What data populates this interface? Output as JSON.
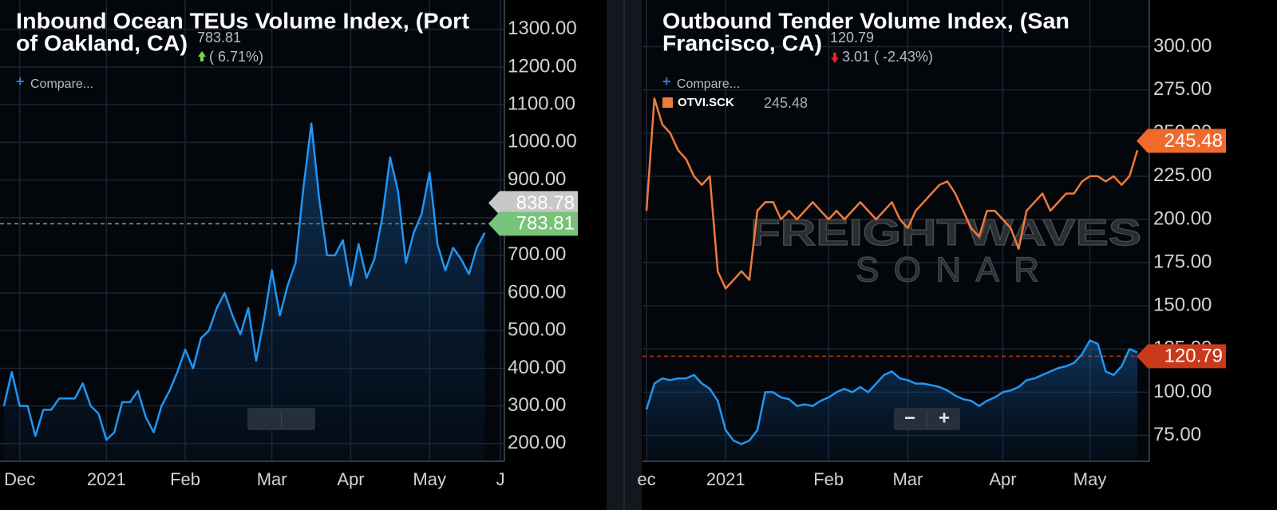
{
  "chart_data": [
    {
      "type": "line",
      "title_lines": [
        "Inbound Ocean TEUs Volume Index, (Port",
        "of Oakland, CA)"
      ],
      "change": "( 6.71%)",
      "compare": "Compare...",
      "categories": [
        null,
        null,
        "Dec",
        null,
        null,
        null,
        null,
        null,
        null,
        null,
        null,
        null,
        null,
        "2021",
        null,
        null,
        null,
        null,
        null,
        null,
        null,
        null,
        null,
        "Feb",
        null,
        null,
        null,
        null,
        null,
        null,
        null,
        null,
        null,
        null,
        "Mar",
        null,
        null,
        null,
        null,
        null,
        null,
        null,
        null,
        null,
        "Apr",
        null,
        null,
        null,
        null,
        null,
        null,
        null,
        null,
        null,
        "May",
        null,
        null,
        null,
        null,
        null,
        null,
        null,
        null,
        "J"
      ],
      "series": [
        {
          "color": "#2196f3",
          "values": [
            300,
            390,
            300,
            300,
            220,
            290,
            290,
            320,
            320,
            320,
            360,
            300,
            280,
            210,
            230,
            310,
            310,
            340,
            270,
            230,
            300,
            340,
            390,
            450,
            400,
            480,
            500,
            560,
            600,
            540,
            490,
            560,
            420,
            530,
            660,
            540,
            620,
            680,
            880,
            1050,
            850,
            700,
            700,
            740,
            620,
            730,
            640,
            690,
            800,
            960,
            870,
            680,
            760,
            810,
            920,
            730,
            660,
            720,
            690,
            650,
            720,
            760,
            null,
            null
          ]
        }
      ],
      "ylim": [
        153,
        1378
      ],
      "yticks": [
        {
          "value": 200,
          "label": "200.00"
        },
        {
          "value": 300,
          "label": "300.00"
        },
        {
          "value": 400,
          "label": "400.00"
        },
        {
          "value": 500,
          "label": "500.00"
        },
        {
          "value": 600,
          "label": "600.00"
        },
        {
          "value": 700,
          "label": "700.00"
        },
        {
          "value": 800,
          "label": "800.00"
        },
        {
          "value": 900,
          "label": "900.00"
        },
        {
          "value": 1000,
          "label": "1000.00"
        },
        {
          "value": 1100,
          "label": "1100.00"
        },
        {
          "value": 1200,
          "label": "1200.00"
        },
        {
          "value": 1300,
          "label": "1300.00"
        }
      ],
      "grid": true,
      "price_labels": [
        {
          "value": 838.78,
          "color": "#c8c8c8"
        },
        {
          "value": 783.81,
          "color": "#78c37a"
        }
      ],
      "ref_color": "#a59a55"
    },
    {
      "type": "line",
      "title_lines": [
        "Outbound Tender Volume Index, (San",
        "Francisco, CA)"
      ],
      "change": "3.01 ( -2.43%)",
      "compare": "Compare...",
      "watermark": [
        "FREIGHTWAVES",
        "SONAR"
      ],
      "zoom": [
        "−",
        "+"
      ],
      "categories": [
        "ec",
        null,
        null,
        null,
        null,
        null,
        null,
        null,
        null,
        null,
        "2021",
        null,
        null,
        null,
        null,
        null,
        null,
        null,
        null,
        null,
        null,
        null,
        null,
        "Feb",
        null,
        null,
        null,
        null,
        null,
        null,
        null,
        null,
        null,
        "Mar",
        null,
        null,
        null,
        null,
        null,
        null,
        null,
        null,
        null,
        null,
        null,
        "Apr",
        null,
        null,
        null,
        null,
        null,
        null,
        null,
        null,
        null,
        null,
        "May",
        null,
        null,
        null,
        null,
        null,
        null,
        null
      ],
      "series": [
        {
          "name": "OTVI.SCK",
          "color": "#f07a3a",
          "values": [
            205,
            270,
            255,
            250,
            240,
            235,
            225,
            220,
            225,
            170,
            160,
            165,
            170,
            165,
            205,
            210,
            210,
            200,
            205,
            200,
            205,
            210,
            205,
            200,
            205,
            200,
            205,
            210,
            205,
            200,
            205,
            210,
            200,
            195,
            205,
            210,
            215,
            220,
            222,
            215,
            205,
            195,
            190,
            205,
            205,
            200,
            195,
            183,
            205,
            210,
            215,
            205,
            210,
            215,
            215,
            222,
            225,
            225,
            222,
            225,
            220,
            225,
            240,
            null
          ]
        },
        {
          "color": "#2196f3",
          "values": [
            90,
            105,
            108,
            107,
            108,
            108,
            110,
            105,
            102,
            95,
            78,
            72,
            70,
            72,
            78,
            100,
            100,
            97,
            96,
            92,
            93,
            92,
            95,
            97,
            100,
            102,
            100,
            103,
            100,
            105,
            110,
            112,
            108,
            107,
            105,
            105,
            104,
            103,
            101,
            98,
            96,
            95,
            92,
            95,
            97,
            100,
            101,
            103,
            107,
            108,
            110,
            112,
            114,
            115,
            117,
            122,
            130,
            128,
            112,
            110,
            115,
            125,
            123,
            null
          ]
        }
      ],
      "ylim": [
        60,
        327
      ],
      "yticks": [
        {
          "value": 75,
          "label": "75.00"
        },
        {
          "value": 100,
          "label": "100.00"
        },
        {
          "value": 125,
          "label": "125.00"
        },
        {
          "value": 150,
          "label": "150.00"
        },
        {
          "value": 175,
          "label": "175.00"
        },
        {
          "value": 200,
          "label": "200.00"
        },
        {
          "value": 225,
          "label": "225.00"
        },
        {
          "value": 250,
          "label": "250.00"
        },
        {
          "value": 275,
          "label": "275.00"
        },
        {
          "value": 300,
          "label": "300.00"
        }
      ],
      "grid": true,
      "price_labels": [
        {
          "value": 245.48,
          "color": "#f06a2c"
        },
        {
          "value": 120.79,
          "color": "#c9391a"
        }
      ],
      "ref_color": "#b8321c"
    }
  ]
}
